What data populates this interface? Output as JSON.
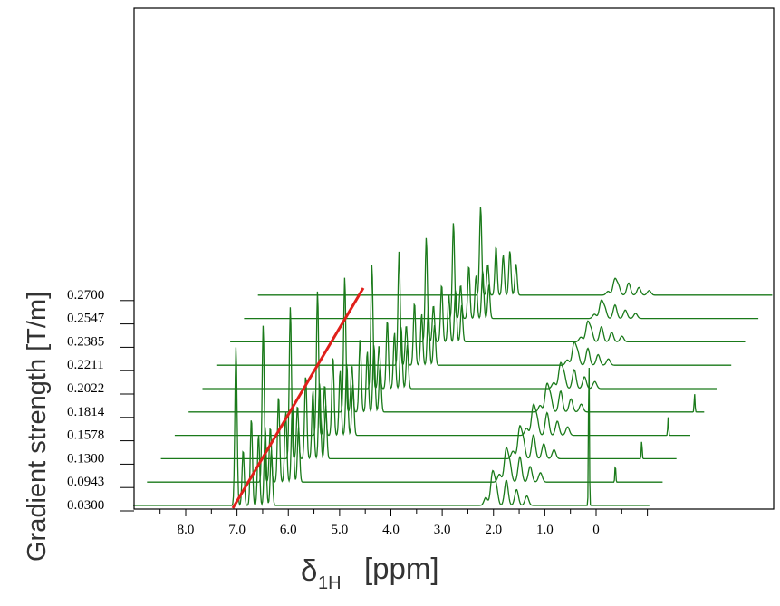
{
  "chart_data": {
    "type": "line",
    "title": "",
    "ylabel": "Gradient strength  [T/m]",
    "xlabel": {
      "symbol": "δ",
      "subscript": "1H",
      "unit": "[ppm]"
    },
    "xlim": [
      9.0,
      -1.0
    ],
    "x_reversed": true,
    "x_ticks": [
      "8.0",
      "7.0",
      "6.0",
      "5.0",
      "4.0",
      "3.0",
      "2.0",
      "1.0",
      "0"
    ],
    "x_tick_values": [
      8.0,
      7.0,
      6.0,
      5.0,
      4.0,
      3.0,
      2.0,
      1.0,
      0.0
    ],
    "gradient_strengths": [
      "0.0300",
      "0.0943",
      "0.1300",
      "0.1578",
      "0.1814",
      "0.2022",
      "0.2211",
      "0.2385",
      "0.2547",
      "0.2700"
    ],
    "series_color": "#1a7a1a",
    "trend_line_color": "#e0201a",
    "peaks": [
      {
        "ppm": 7.02,
        "h": 170,
        "w": 0.035
      },
      {
        "ppm": 6.75,
        "h": 120,
        "w": 0.035
      },
      {
        "ppm": 6.55,
        "h": 95,
        "w": 0.035
      },
      {
        "ppm": 6.4,
        "h": 70,
        "w": 0.035
      },
      {
        "ppm": 2.05,
        "h": 55,
        "w": 0.05
      },
      {
        "ppm": 1.95,
        "h": 30,
        "w": 0.05
      },
      {
        "ppm": 1.7,
        "h": 35,
        "w": 0.05
      },
      {
        "ppm": 0.2,
        "h": 170,
        "w": 0.012
      }
    ]
  }
}
